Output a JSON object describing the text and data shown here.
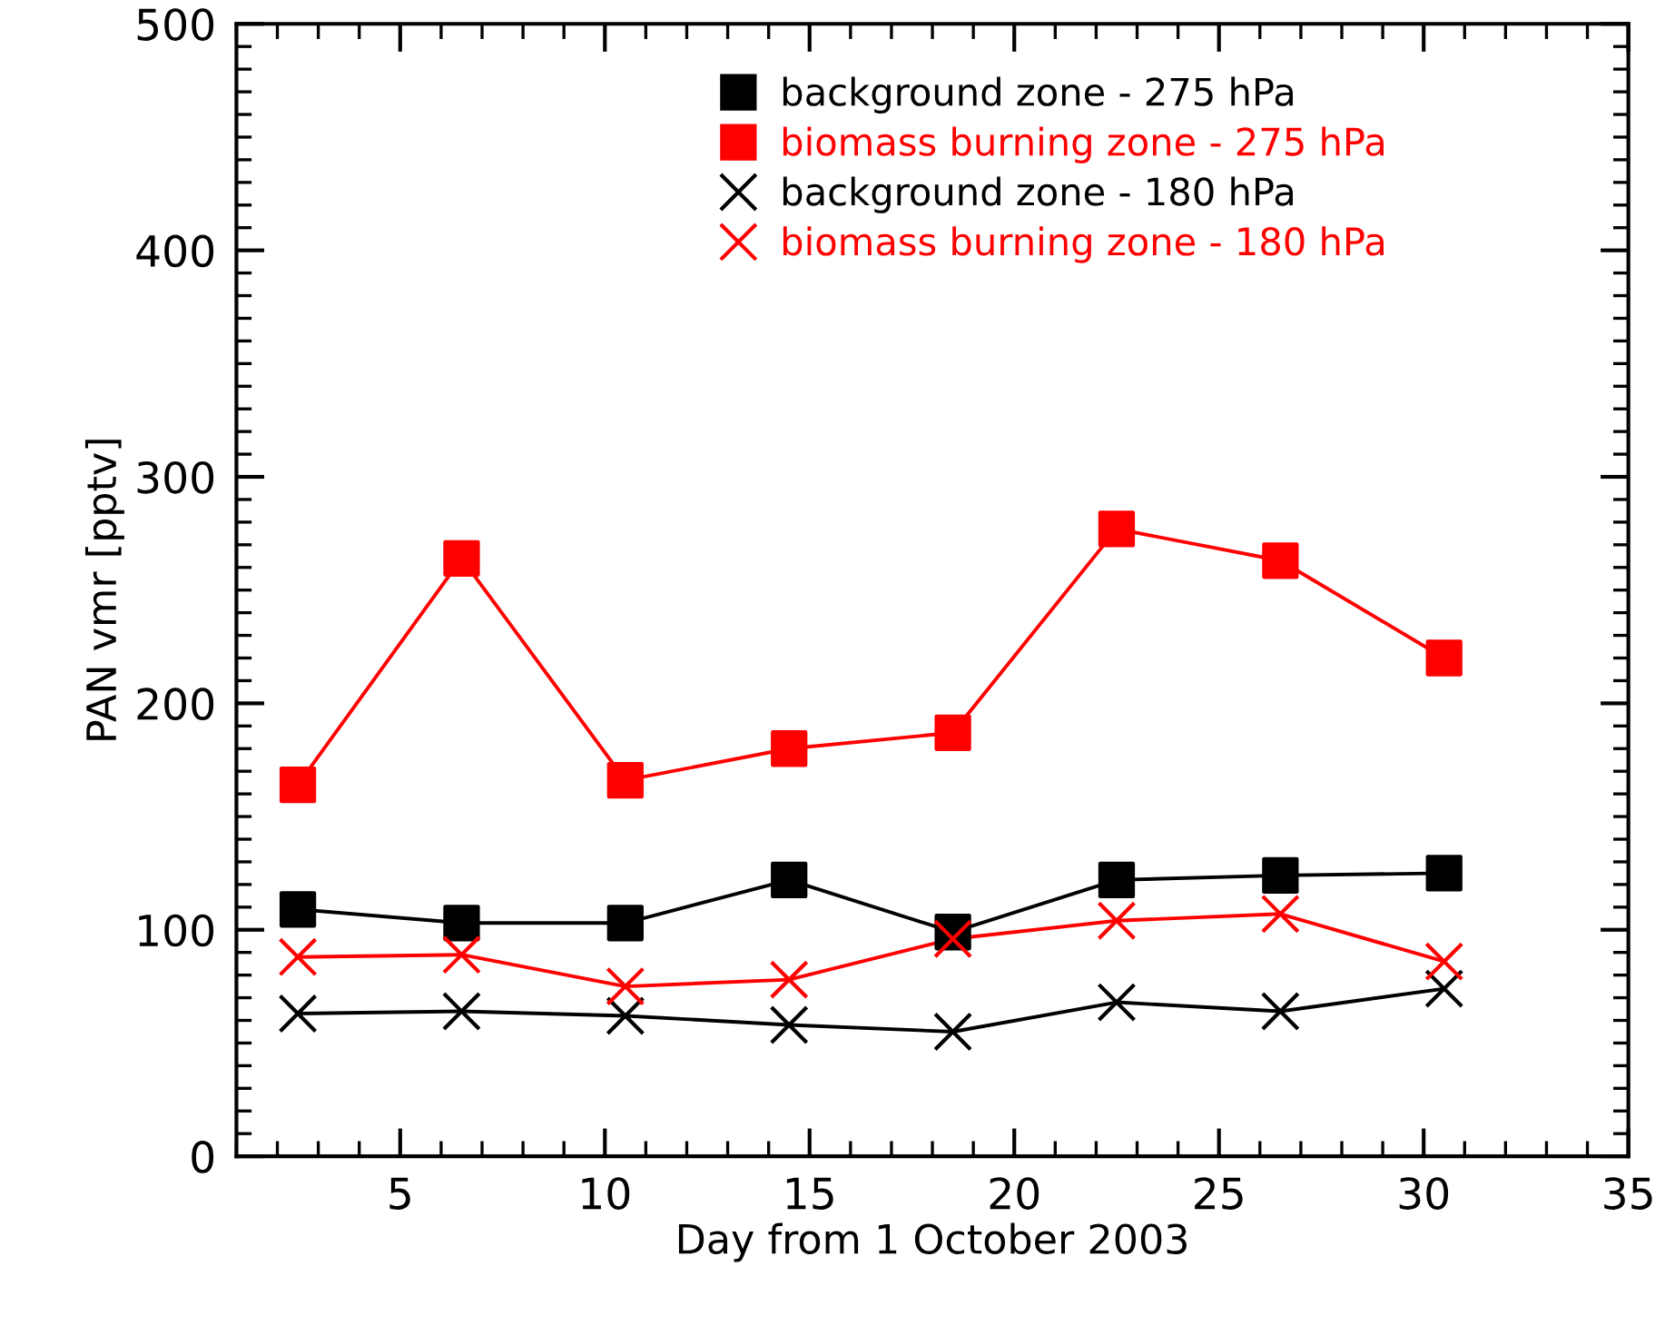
{
  "chart_data": {
    "type": "line",
    "xlabel": "Day from 1 October 2003",
    "ylabel": "PAN vmr [pptv]",
    "x": [
      2.5,
      6.5,
      10.5,
      14.5,
      18.5,
      22.5,
      26.5,
      30.5
    ],
    "series": [
      {
        "name": "background zone - 275 hPa",
        "color": "#000000",
        "marker": "square",
        "values": [
          109,
          103,
          103,
          122,
          99,
          122,
          124,
          125
        ]
      },
      {
        "name": "biomass burning zone - 275 hPa",
        "color": "#ff0000",
        "marker": "square",
        "values": [
          164,
          264,
          166,
          180,
          187,
          277,
          263,
          220
        ]
      },
      {
        "name": "background zone - 180 hPa",
        "color": "#000000",
        "marker": "cross",
        "values": [
          63,
          64,
          62,
          58,
          55,
          68,
          64,
          74
        ]
      },
      {
        "name": "biomass burning zone - 180 hPa",
        "color": "#ff0000",
        "marker": "cross",
        "values": [
          88,
          89,
          75,
          78,
          96,
          104,
          107,
          86
        ]
      }
    ],
    "xlim": [
      1,
      35
    ],
    "xticks": [
      5,
      10,
      15,
      20,
      25,
      30,
      35
    ],
    "ylim": [
      0,
      500
    ],
    "yticks": [
      0,
      100,
      200,
      300,
      400,
      500
    ],
    "grid": false,
    "legend": "top",
    "line_style": "solid"
  }
}
